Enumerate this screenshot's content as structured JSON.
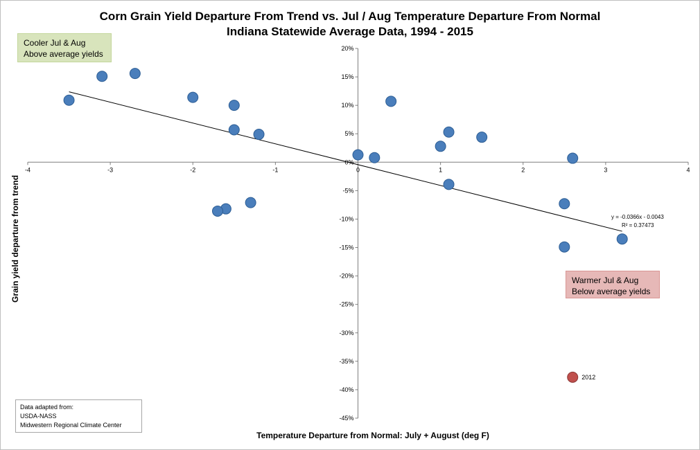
{
  "chart_data": {
    "type": "scatter",
    "title": "Corn Grain Yield Departure From Trend vs. Jul / Aug Temperature Departure From Normal",
    "subtitle": "Indiana Statewide Average Data, 1994 - 2015",
    "xlabel": "Temperature Departure from Normal: July + August (deg F)",
    "ylabel": "Grain yield departure from trend",
    "xlim": [
      -4,
      4
    ],
    "ylim": [
      -45,
      20
    ],
    "x_ticks": [
      "-4",
      "-3",
      "-2",
      "-1",
      "0",
      "1",
      "2",
      "3",
      "4"
    ],
    "y_ticks": [
      "20%",
      "15%",
      "10%",
      "5%",
      "0%",
      "-5%",
      "-10%",
      "-15%",
      "-20%",
      "-25%",
      "-30%",
      "-35%",
      "-40%",
      "-45%"
    ],
    "points": [
      {
        "x": -3.5,
        "y": 10.9
      },
      {
        "x": -3.1,
        "y": 15.1
      },
      {
        "x": -2.7,
        "y": 15.6
      },
      {
        "x": -2.0,
        "y": 11.4
      },
      {
        "x": -1.5,
        "y": 10.0
      },
      {
        "x": -1.5,
        "y": 5.7
      },
      {
        "x": -1.2,
        "y": 4.9
      },
      {
        "x": -1.3,
        "y": -7.1
      },
      {
        "x": -1.6,
        "y": -8.2
      },
      {
        "x": -1.7,
        "y": -8.6
      },
      {
        "x": 0.0,
        "y": 1.3
      },
      {
        "x": 0.2,
        "y": 0.8
      },
      {
        "x": 0.4,
        "y": 10.7
      },
      {
        "x": 1.0,
        "y": 2.8
      },
      {
        "x": 1.1,
        "y": 5.3
      },
      {
        "x": 1.1,
        "y": -3.9
      },
      {
        "x": 1.5,
        "y": 4.4
      },
      {
        "x": 2.6,
        "y": 0.7
      },
      {
        "x": 2.5,
        "y": -7.3
      },
      {
        "x": 2.5,
        "y": -14.9
      },
      {
        "x": 3.2,
        "y": -13.5
      }
    ],
    "highlight_point": {
      "x": 2.6,
      "y": -37.8,
      "label": "2012"
    },
    "trendline": {
      "x_range": [
        -3.5,
        3.2
      ],
      "slope": -0.0366,
      "intercept": -0.0043,
      "equation": "y = -0.0366x - 0.0043",
      "r_squared": "R² = 0.37473"
    },
    "grid": false,
    "colors": {
      "points": "#4a7ebb",
      "point_edge": "#2c5d94",
      "highlight": "#c0504d",
      "highlight_edge": "#8c3836",
      "axes": "#7f7f7f",
      "trendline": "#000000"
    }
  },
  "annotations": {
    "cool_line1": "Cooler Jul & Aug",
    "cool_line2": "Above average yields",
    "warm_line1": "Warmer Jul & Aug",
    "warm_line2": "Below average yields"
  },
  "source_box": {
    "line1": "Data adapted from:",
    "line2": "USDA-NASS",
    "line3": "Midwestern Regional Climate Center"
  }
}
